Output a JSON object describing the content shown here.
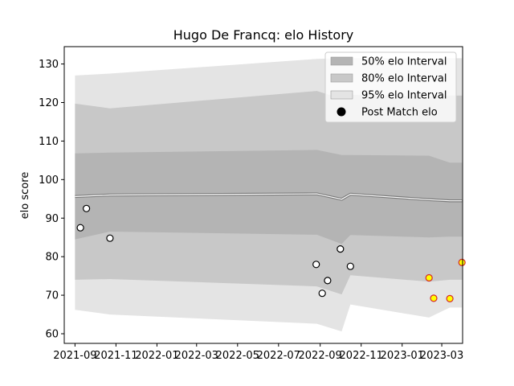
{
  "chart_data": {
    "type": "line",
    "title": "Hugo De Francq: elo History",
    "xlabel": "",
    "ylabel": "elo score",
    "xlim": [
      "2021-08-16",
      "2023-04-01"
    ],
    "ylim": [
      57.5,
      134.5
    ],
    "x_ticks": [
      "2021-09",
      "2021-11",
      "2022-01",
      "2022-03",
      "2022-05",
      "2022-07",
      "2022-09",
      "2022-11",
      "2023-01",
      "2023-03"
    ],
    "y_ticks": [
      60,
      70,
      80,
      90,
      100,
      110,
      120,
      130
    ],
    "grid": false,
    "legend_position": "top-right",
    "band_x": [
      "2021-09-01",
      "2021-10-23",
      "2022-08-27",
      "2022-10-03",
      "2022-10-16",
      "2023-02-10",
      "2023-03-13",
      "2023-03-31"
    ],
    "rating_mean": [
      95.6,
      96.0,
      96.3,
      94.9,
      96.2,
      94.8,
      94.5,
      94.5
    ],
    "bands": [
      {
        "name": "95% elo Interval",
        "color": "#e4e4e4",
        "upper": [
          127.0,
          127.5,
          131.3,
          131.5,
          131.5,
          131.5,
          131.5,
          131.5
        ],
        "lower": [
          66.2,
          65.0,
          62.6,
          60.6,
          67.6,
          64.2,
          66.8,
          66.8
        ]
      },
      {
        "name": "80% elo Interval",
        "color": "#c8c8c8",
        "upper": [
          119.7,
          118.5,
          123.0,
          121.0,
          122.0,
          121.5,
          121.8,
          121.8
        ],
        "lower": [
          74.0,
          74.2,
          72.3,
          70.2,
          75.2,
          73.5,
          74.0,
          74.0
        ]
      },
      {
        "name": "50% elo Interval",
        "color": "#b4b4b4",
        "upper": [
          106.8,
          107.0,
          107.7,
          106.4,
          106.4,
          106.2,
          104.4,
          104.4
        ],
        "lower": [
          84.5,
          86.5,
          85.7,
          83.3,
          85.6,
          85.0,
          85.2,
          85.2
        ]
      }
    ],
    "series": [
      {
        "name": "Post Match elo",
        "points": [
          {
            "date": "2021-09-09",
            "elo": 87.5,
            "marker": "white"
          },
          {
            "date": "2021-09-18",
            "elo": 92.5,
            "marker": "white"
          },
          {
            "date": "2021-10-23",
            "elo": 84.8,
            "marker": "white"
          },
          {
            "date": "2022-08-26",
            "elo": 78.0,
            "marker": "white"
          },
          {
            "date": "2022-09-04",
            "elo": 70.5,
            "marker": "white"
          },
          {
            "date": "2022-09-12",
            "elo": 73.8,
            "marker": "white"
          },
          {
            "date": "2022-10-01",
            "elo": 82.0,
            "marker": "white"
          },
          {
            "date": "2022-10-16",
            "elo": 77.5,
            "marker": "white"
          },
          {
            "date": "2023-02-10",
            "elo": 74.5,
            "marker": "yellow"
          },
          {
            "date": "2023-02-17",
            "elo": 69.2,
            "marker": "yellow"
          },
          {
            "date": "2023-03-13",
            "elo": 69.1,
            "marker": "yellow"
          },
          {
            "date": "2023-03-31",
            "elo": 78.5,
            "marker": "yellow"
          }
        ]
      }
    ],
    "legend": [
      {
        "label": "50% elo Interval",
        "kind": "patch",
        "color": "#b4b4b4"
      },
      {
        "label": "80% elo Interval",
        "kind": "patch",
        "color": "#c8c8c8"
      },
      {
        "label": "95% elo Interval",
        "kind": "patch",
        "color": "#e4e4e4"
      },
      {
        "label": "Post Match elo",
        "kind": "marker",
        "color": "#000000"
      }
    ],
    "marker_colors": {
      "white": {
        "fill": "#ffffff",
        "stroke": "#000000"
      },
      "yellow": {
        "fill": "#ffff00",
        "stroke": "#d62728"
      }
    }
  }
}
